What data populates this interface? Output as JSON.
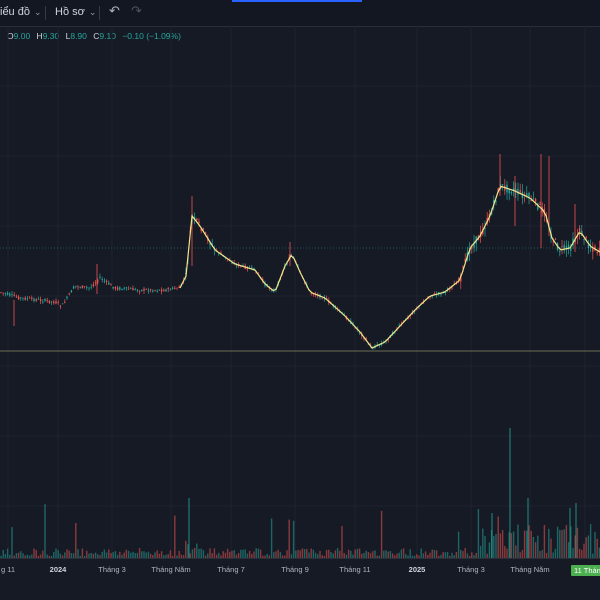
{
  "toolbar": {
    "chart_label": "iểu đồ",
    "profile_label": "Hồ sơ"
  },
  "ohlc": {
    "o_label": "O",
    "o_value": "9.00",
    "h_label": "H",
    "h_value": "9.30",
    "l_label": "L",
    "l_value": "8.90",
    "c_label": "C",
    "c_value": "9.10",
    "change": "−0.10 (−1.09%)"
  },
  "colors": {
    "up": "#26a69a",
    "down": "#ef5350",
    "ma_line": "#f0e68c",
    "background": "#161a25",
    "highlight_label": "#4caf50"
  },
  "xaxis": {
    "labels": [
      "g 11",
      "2024",
      "Tháng 3",
      "Tháng Năm",
      "Tháng 7",
      "Tháng 9",
      "Tháng 11",
      "2025",
      "Tháng 3",
      "Tháng Năm",
      "11 Thán"
    ]
  },
  "chart_data": {
    "type": "candlestick",
    "price_range": [
      8.0,
      14.0
    ],
    "horizontal_levels": [
      11.6,
      8.9
    ],
    "series": [
      {
        "name": "",
        "values": []
      }
    ]
  }
}
